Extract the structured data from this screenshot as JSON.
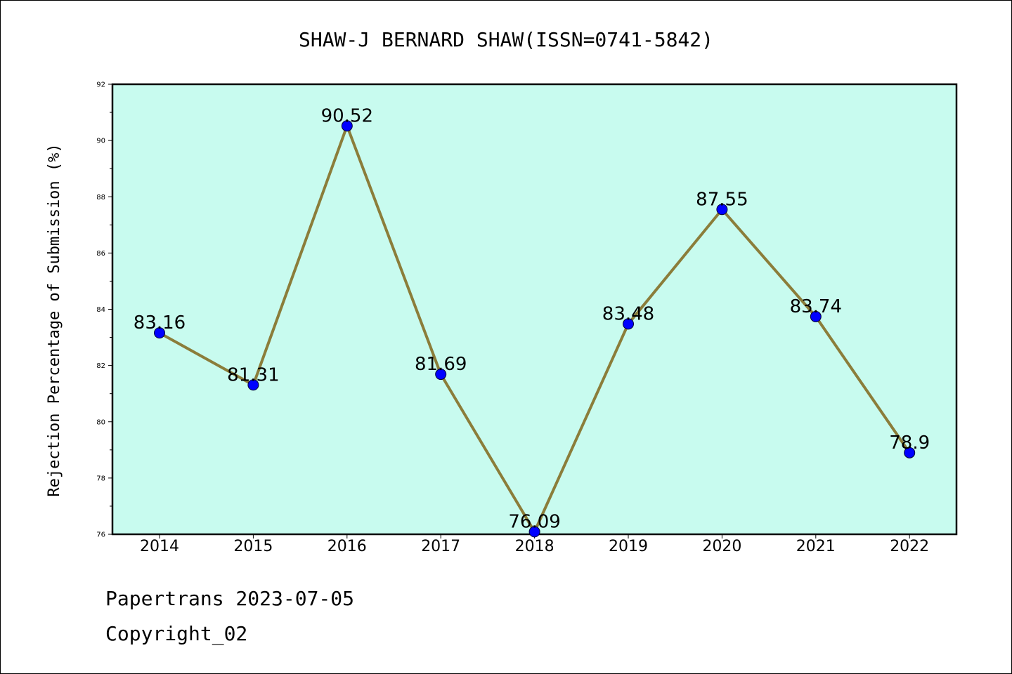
{
  "chart_data": {
    "type": "line",
    "title": "SHAW-J BERNARD SHAW(ISSN=0741-5842)",
    "xlabel": "",
    "ylabel": "Rejection Percentage of Submission (%)",
    "categories": [
      "2014",
      "2015",
      "2016",
      "2017",
      "2018",
      "2019",
      "2020",
      "2021",
      "2022"
    ],
    "values": [
      83.16,
      81.31,
      90.52,
      81.69,
      76.09,
      83.48,
      87.55,
      83.74,
      78.9
    ],
    "data_labels": [
      "83.16",
      "81.31",
      "90.52",
      "81.69",
      "76.09",
      "83.48",
      "87.55",
      "83.74",
      "78.9"
    ],
    "ylim": [
      76,
      92
    ],
    "yticks": [
      "76",
      "78",
      "80",
      "82",
      "84",
      "86",
      "88",
      "90",
      "92"
    ],
    "grid": false,
    "colors": {
      "plot_background": "#c8fbef",
      "line": "#8b7d3a",
      "marker": "#0000ff"
    }
  },
  "footer": {
    "line1": "Papertrans 2023-07-05",
    "line2": "Copyright_02"
  }
}
